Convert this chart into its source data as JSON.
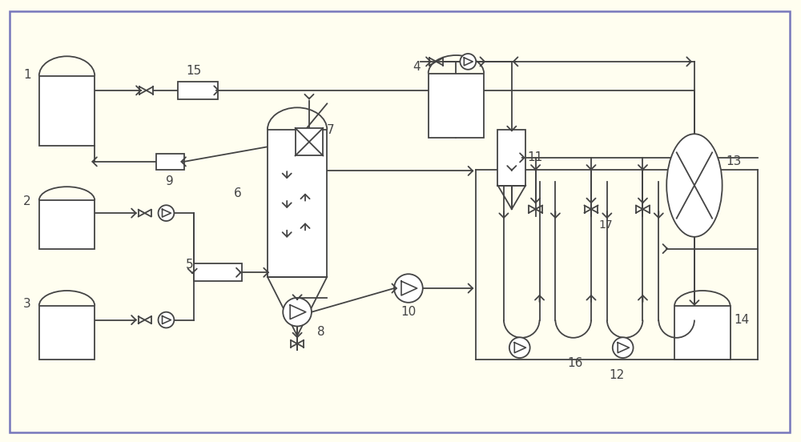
{
  "bg_color": "#FFFEF0",
  "line_color": "#444444",
  "border_color": "#7777BB",
  "figsize": [
    10.0,
    5.52
  ],
  "dpi": 100
}
